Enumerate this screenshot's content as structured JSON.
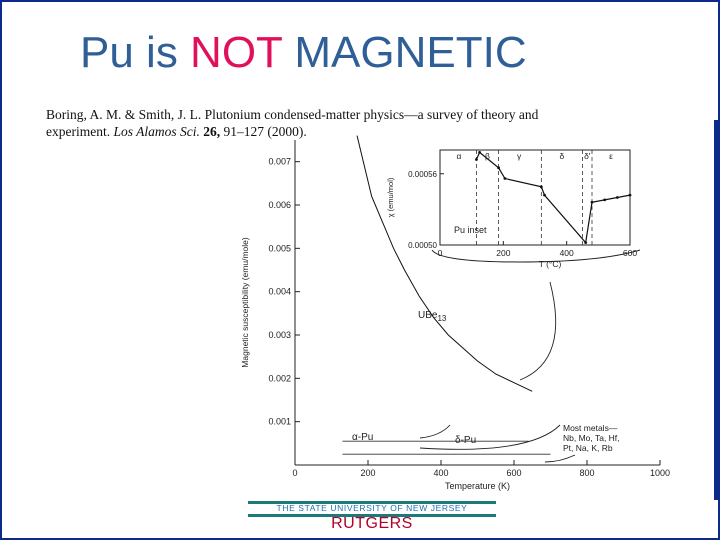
{
  "slide": {
    "title_part1": "Pu is ",
    "title_highlight": "NOT",
    "title_part2": " MAGNETIC",
    "citation": {
      "authors": "Boring, A. M. & Smith, J. L. Plutonium condensed-matter physics—a survey of theory and experiment. ",
      "journal": "Los Alamos Sci.",
      "volume": "26,",
      "pages": " 91–127 (2000)."
    },
    "footer_university": "THE STATE UNIVERSITY OF NEW JERSEY",
    "footer_name": "RUTGERS"
  },
  "chart_data": [
    {
      "type": "line",
      "xlabel": "Temperature (K)",
      "ylabel": "Magnetic susceptibility (emu/mole)",
      "xlim": [
        0,
        1000
      ],
      "ylim": [
        0,
        0.0075
      ],
      "x_ticks": [
        "0",
        "200",
        "400",
        "600",
        "800",
        "1000"
      ],
      "y_ticks": [
        "0.001",
        "0.002",
        "0.003",
        "0.004",
        "0.005",
        "0.006",
        "0.007"
      ],
      "series": [
        {
          "name": "UBe13",
          "x": [
            170,
            190,
            210,
            240,
            270,
            300,
            340,
            380,
            420,
            460,
            500,
            550,
            600,
            650
          ],
          "y": [
            0.0076,
            0.0069,
            0.0062,
            0.0056,
            0.005,
            0.0045,
            0.0039,
            0.0034,
            0.003,
            0.0027,
            0.0024,
            0.0021,
            0.0019,
            0.0017
          ]
        }
      ],
      "annotations": [
        {
          "text": "UBe",
          "sub": "13"
        },
        {
          "text": "α-Pu"
        },
        {
          "text": "δ-Pu"
        },
        {
          "text": "Most metals—"
        },
        {
          "text": "Nb, Mo, Ta, Hf,"
        },
        {
          "text": "Pt, Na, K, Rb"
        }
      ]
    },
    {
      "type": "line",
      "xlabel": "T (°C)",
      "ylabel": "χ (emu/mol)",
      "xlim": [
        0,
        600
      ],
      "ylim": [
        0.0005,
        0.00058
      ],
      "x_ticks": [
        "0",
        "200",
        "400",
        "600"
      ],
      "y_ticks": [
        "0.00050",
        "0.00056"
      ],
      "phase_labels": [
        "α",
        "β",
        "γ",
        "δ",
        "δ'",
        "ε"
      ],
      "series": [
        {
          "name": "",
          "x": [
            115,
            125,
            185,
            205,
            320,
            330,
            460,
            480,
            520,
            560,
            600
          ],
          "y": [
            0.000572,
            0.000578,
            0.000565,
            0.000556,
            0.000549,
            0.000542,
            0.000502,
            0.000536,
            0.000538,
            0.00054,
            0.000542
          ]
        }
      ],
      "annotations": [
        {
          "text": "Pu inset"
        }
      ]
    }
  ]
}
